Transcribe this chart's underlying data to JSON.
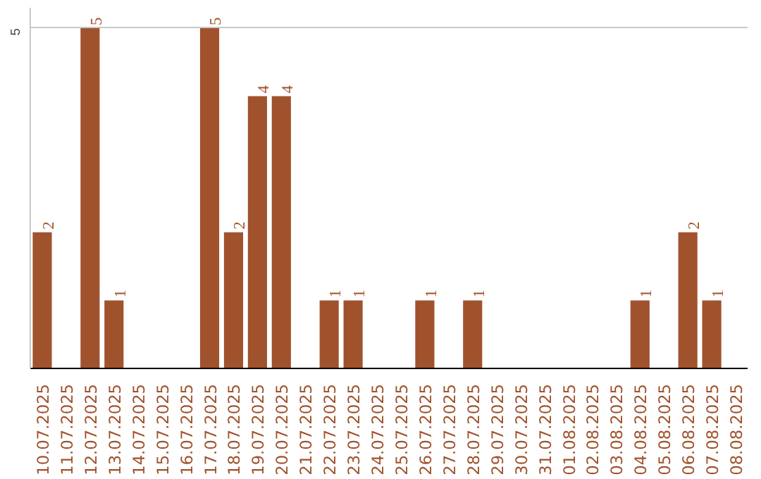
{
  "chart_data": {
    "type": "bar",
    "categories": [
      "10.07.2025",
      "11.07.2025",
      "12.07.2025",
      "13.07.2025",
      "14.07.2025",
      "15.07.2025",
      "16.07.2025",
      "17.07.2025",
      "18.07.2025",
      "19.07.2025",
      "20.07.2025",
      "21.07.2025",
      "22.07.2025",
      "23.07.2025",
      "24.07.2025",
      "25.07.2025",
      "26.07.2025",
      "27.07.2025",
      "28.07.2025",
      "29.07.2025",
      "30.07.2025",
      "31.07.2025",
      "01.08.2025",
      "02.08.2025",
      "03.08.2025",
      "04.08.2025",
      "05.08.2025",
      "06.08.2025",
      "07.08.2025",
      "08.08.2025"
    ],
    "values": [
      2,
      0,
      5,
      1,
      0,
      0,
      0,
      5,
      2,
      4,
      4,
      0,
      1,
      1,
      0,
      0,
      1,
      0,
      1,
      0,
      0,
      0,
      0,
      0,
      0,
      1,
      0,
      2,
      1,
      0
    ],
    "value_labels": [
      "2",
      null,
      "5",
      "1",
      null,
      null,
      null,
      "5",
      "2",
      "4",
      "4",
      null,
      "1",
      "1",
      null,
      null,
      "1",
      null,
      "1",
      null,
      null,
      null,
      null,
      null,
      null,
      "1",
      null,
      "2",
      "1",
      null
    ],
    "color": "#a0522d",
    "ylim": [
      0,
      5.3
    ],
    "yticks": [
      5
    ],
    "grid": "y"
  }
}
